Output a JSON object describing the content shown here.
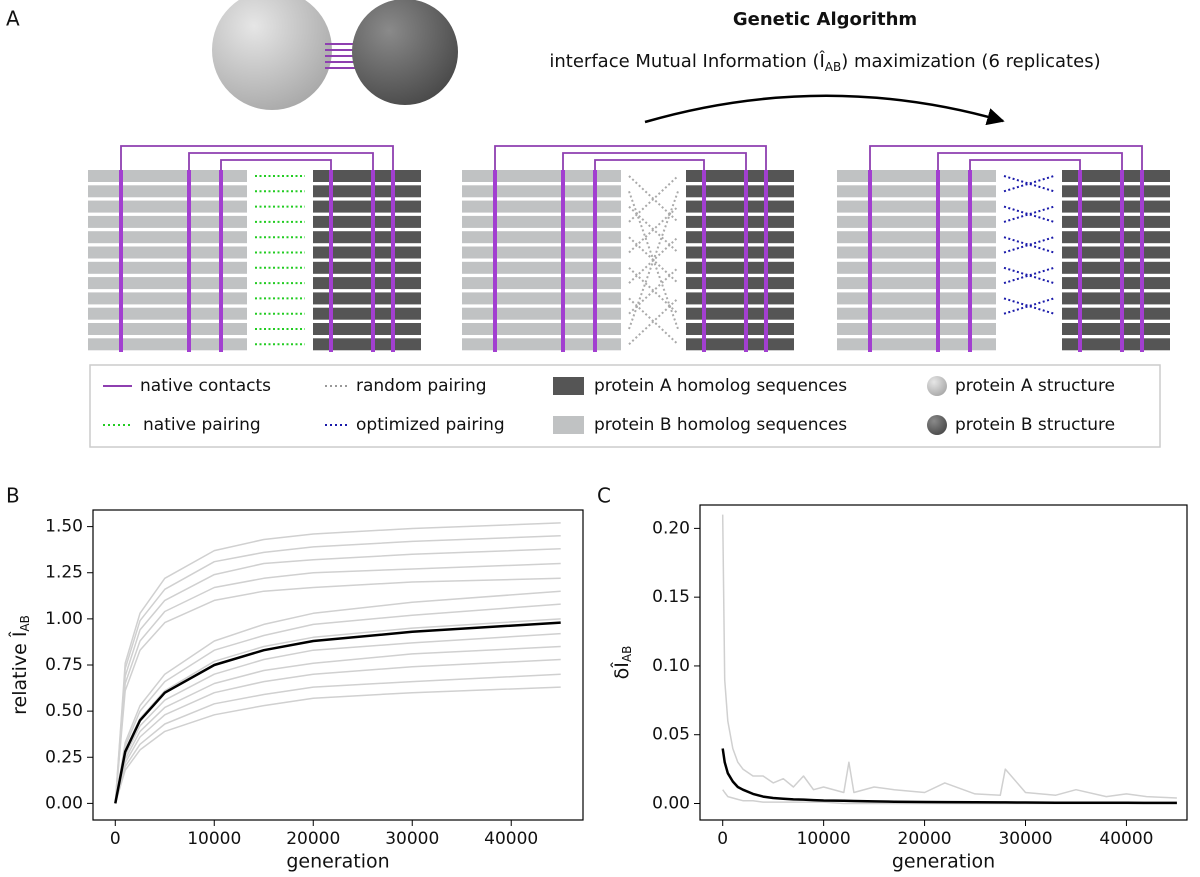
{
  "panel_labels": [
    "A",
    "B",
    "C"
  ],
  "diagram": {
    "title": "Genetic Algorithm",
    "subtitle": [
      "interface Mutual Information (Î",
      "AB",
      ") maximization (6 replicates)"
    ],
    "legend": [
      "native contacts",
      "random pairing",
      "protein A homolog sequences",
      "protein A structure",
      "native pairing",
      "optimized pairing",
      "protein B homolog sequences",
      "protein B structure"
    ]
  },
  "chart_data": [
    {
      "type": "line",
      "x_label": "generation",
      "y_label": [
        "relative Î",
        "AB"
      ],
      "x": [
        0,
        1000,
        2500,
        5000,
        10000,
        15000,
        20000,
        30000,
        45000
      ],
      "xlim": [
        -2250,
        47250
      ],
      "xticks": [
        0,
        10000,
        20000,
        30000,
        40000
      ],
      "ylim": [
        -0.09,
        1.59
      ],
      "yticks": [
        {
          "value": 0,
          "label": "0.00"
        },
        {
          "value": 0.25,
          "label": "0.25"
        },
        {
          "value": 0.5,
          "label": "0.50"
        },
        {
          "value": 0.75,
          "label": "0.75"
        },
        {
          "value": 1,
          "label": "1.00"
        },
        {
          "value": 1.25,
          "label": "1.25"
        },
        {
          "value": 1.5,
          "label": "1.50"
        }
      ],
      "series": [
        {
          "color": "#d0d0d0",
          "values": [
            0,
            0.18,
            0.29,
            0.39,
            0.48,
            0.53,
            0.57,
            0.6,
            0.63
          ]
        },
        {
          "color": "#d0d0d0",
          "values": [
            0,
            0.2,
            0.32,
            0.43,
            0.54,
            0.59,
            0.63,
            0.66,
            0.7
          ]
        },
        {
          "color": "#d0d0d0",
          "values": [
            0,
            0.22,
            0.36,
            0.48,
            0.6,
            0.66,
            0.7,
            0.74,
            0.78
          ]
        },
        {
          "color": "#d0d0d0",
          "values": [
            0,
            0.24,
            0.39,
            0.52,
            0.65,
            0.72,
            0.76,
            0.81,
            0.85
          ]
        },
        {
          "color": "#d0d0d0",
          "values": [
            0,
            0.26,
            0.42,
            0.56,
            0.7,
            0.78,
            0.83,
            0.87,
            0.92
          ]
        },
        {
          "color": "#d0d0d0",
          "values": [
            0,
            0.29,
            0.46,
            0.61,
            0.77,
            0.85,
            0.9,
            0.95,
            1.0
          ]
        },
        {
          "color": "#d0d0d0",
          "values": [
            0,
            0.31,
            0.5,
            0.66,
            0.83,
            0.91,
            0.97,
            1.02,
            1.08
          ]
        },
        {
          "color": "#d0d0d0",
          "values": [
            0,
            0.33,
            0.53,
            0.7,
            0.88,
            0.97,
            1.03,
            1.09,
            1.15
          ]
        },
        {
          "color": "#d0d0d0",
          "values": [
            0,
            0.61,
            0.83,
            0.98,
            1.1,
            1.15,
            1.17,
            1.2,
            1.22
          ]
        },
        {
          "color": "#d0d0d0",
          "values": [
            0,
            0.65,
            0.88,
            1.04,
            1.17,
            1.22,
            1.25,
            1.27,
            1.3
          ]
        },
        {
          "color": "#d0d0d0",
          "values": [
            0,
            0.69,
            0.94,
            1.1,
            1.24,
            1.3,
            1.32,
            1.35,
            1.38
          ]
        },
        {
          "color": "#d0d0d0",
          "values": [
            0,
            0.73,
            0.99,
            1.16,
            1.31,
            1.36,
            1.39,
            1.42,
            1.45
          ]
        },
        {
          "color": "#d0d0d0",
          "values": [
            0,
            0.76,
            1.03,
            1.22,
            1.37,
            1.43,
            1.46,
            1.49,
            1.52
          ]
        },
        {
          "color": "#000000",
          "values": [
            0,
            0.28,
            0.45,
            0.6,
            0.75,
            0.83,
            0.88,
            0.93,
            0.98
          ]
        }
      ]
    },
    {
      "type": "line",
      "x_label": "generation",
      "y_label": [
        "δÎ",
        "AB"
      ],
      "x": [
        0,
        200,
        500,
        1000,
        1500,
        2000,
        3000,
        4000,
        5000,
        6000,
        7000,
        8000,
        9000,
        10000,
        12000,
        12500,
        13000,
        15000,
        17000,
        20000,
        22000,
        25000,
        27500,
        28000,
        30000,
        33000,
        35000,
        38000,
        40000,
        42000,
        45000
      ],
      "xlim": [
        -2250,
        46000
      ],
      "xticks": [
        0,
        10000,
        20000,
        30000,
        40000
      ],
      "ylim": [
        -0.012,
        0.217
      ],
      "yticks": [
        {
          "value": 0,
          "label": "0.00"
        },
        {
          "value": 0.05,
          "label": "0.05"
        },
        {
          "value": 0.1,
          "label": "0.10"
        },
        {
          "value": 0.15,
          "label": "0.15"
        },
        {
          "value": 0.2,
          "label": "0.20"
        }
      ],
      "series": [
        {
          "color": "#d0d0d0",
          "values": [
            0.21,
            0.09,
            0.06,
            0.04,
            0.03,
            0.025,
            0.02,
            0.02,
            0.015,
            0.018,
            0.012,
            0.02,
            0.01,
            0.012,
            0.008,
            0.03,
            0.008,
            0.012,
            0.01,
            0.008,
            0.015,
            0.007,
            0.006,
            0.025,
            0.008,
            0.006,
            0.01,
            0.005,
            0.007,
            0.005,
            0.004
          ]
        },
        {
          "color": "#d0d0d0",
          "values": [
            0.01,
            0.008,
            0.005,
            0.004,
            0.003,
            0.002,
            0.002,
            0.001,
            0.001,
            0.001,
            0.001,
            0.001,
            0.001,
            0.001,
            0,
            0,
            0,
            0,
            0,
            0,
            0,
            0,
            0,
            0,
            0,
            0,
            0,
            0,
            0,
            0,
            0
          ]
        },
        {
          "color": "#000000",
          "values": [
            0.04,
            0.03,
            0.022,
            0.016,
            0.012,
            0.01,
            0.007,
            0.005,
            0.004,
            0.0035,
            0.003,
            0.0028,
            0.0025,
            0.0022,
            0.002,
            0.0019,
            0.0018,
            0.0015,
            0.0013,
            0.0011,
            0.001,
            0.0009,
            0.0008,
            0.0008,
            0.0007,
            0.0006,
            0.0006,
            0.0005,
            0.0005,
            0.0004,
            0.0004
          ]
        }
      ]
    }
  ]
}
